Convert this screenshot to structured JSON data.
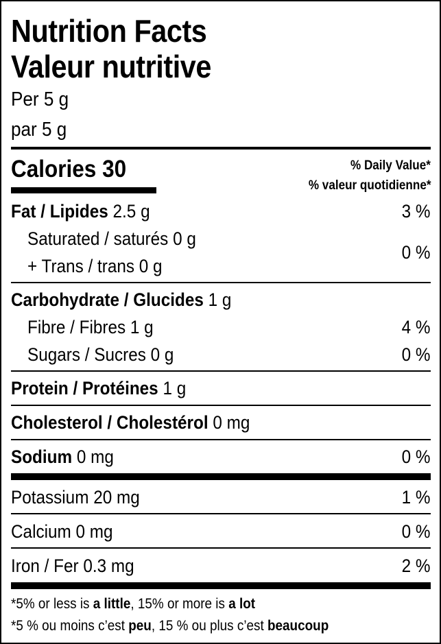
{
  "title_en": "Nutrition Facts",
  "title_fr": "Valeur nutritive",
  "serving_en": "Per 5 g",
  "serving_fr": "par 5 g",
  "calories": {
    "label": "Calories",
    "value": "30"
  },
  "daily_value_en": "% Daily Value*",
  "daily_value_fr": "% valeur quotidienne*",
  "nutrients": {
    "fat": {
      "label": "Fat / Lipides",
      "amount": "2.5 g",
      "dv": "3 %"
    },
    "saturated": {
      "label": "Saturated / saturés",
      "amount": "0 g"
    },
    "trans": {
      "label": "+ Trans / trans",
      "amount": "0 g"
    },
    "sat_trans_dv": "0 %",
    "carbohydrate": {
      "label": "Carbohydrate / Glucides",
      "amount": "1 g"
    },
    "fibre": {
      "label": "Fibre / Fibres",
      "amount": "1 g",
      "dv": "4 %"
    },
    "sugars": {
      "label": "Sugars / Sucres",
      "amount": "0 g",
      "dv": "0 %"
    },
    "protein": {
      "label": "Protein / Protéines",
      "amount": "1 g"
    },
    "cholesterol": {
      "label": "Cholesterol / Cholestérol",
      "amount": "0 mg"
    },
    "sodium": {
      "label": "Sodium",
      "amount": "0 mg",
      "dv": "0 %"
    },
    "potassium": {
      "label": "Potassium",
      "amount": "20 mg",
      "dv": "1 %"
    },
    "calcium": {
      "label": "Calcium",
      "amount": "0 mg",
      "dv": "0 %"
    },
    "iron": {
      "label": "Iron / Fer",
      "amount": "0.3 mg",
      "dv": "2 %"
    }
  },
  "footnote_en": {
    "p1": "*5% or less is ",
    "b1": "a little",
    "p2": ", 15% or more is ",
    "b2": "a lot"
  },
  "footnote_fr": {
    "p1": "*5 % ou moins c’est ",
    "b1": "peu",
    "p2": ", 15 % ou plus c’est ",
    "b2": "beaucoup"
  }
}
